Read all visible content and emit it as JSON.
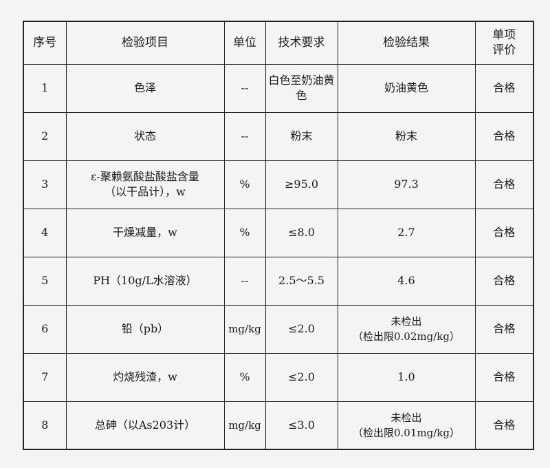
{
  "headers": [
    "序号",
    "检验项目",
    "单位",
    "技术要求",
    "检验结果",
    "单项\n评价"
  ],
  "rows": [
    {
      "no": "1",
      "item": "色泽",
      "unit": "--",
      "requirement": "白色至奶油黄色",
      "result": "奶油黄色",
      "evaluation": "合格"
    },
    {
      "no": "2",
      "item": "状态",
      "unit": "--",
      "requirement": "粉末",
      "result": "粉末",
      "evaluation": "合格"
    },
    {
      "no": "3",
      "item": "ε-聚赖氨酸盐酸盐含量\n（以干品计），w",
      "unit": "%",
      "requirement": "≥95.0",
      "result": "97.3",
      "evaluation": "合格"
    },
    {
      "no": "4",
      "item": "干燥减量，w",
      "unit": "%",
      "requirement": "≤8.0",
      "result": "2.7",
      "evaluation": "合格"
    },
    {
      "no": "5",
      "item": "PH（10g/L水溶液）",
      "unit": "--",
      "requirement": "2.5～5.5",
      "result": "4.6",
      "evaluation": "合格"
    },
    {
      "no": "6",
      "item": "铅（pb）",
      "unit": "mg/kg",
      "requirement": "≤2.0",
      "result": "未检出\n（检出限0.02mg/kg）",
      "evaluation": "合格"
    },
    {
      "no": "7",
      "item": "灼烧残渣，w",
      "unit": "%",
      "requirement": "≤2.0",
      "result": "1.0",
      "evaluation": "合格"
    },
    {
      "no": "8",
      "item": "总砷（以As203计）",
      "unit": "mg/kg",
      "requirement": "≤3.0",
      "result": "未检出\n（检出限0.01mg/kg）",
      "evaluation": "合格"
    }
  ]
}
